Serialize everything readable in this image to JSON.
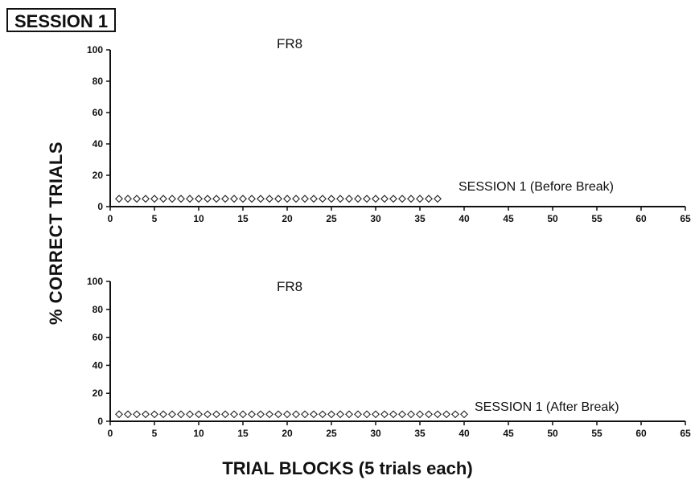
{
  "session_label": "SESSION 1",
  "chart_data": {
    "type": "scatter",
    "shared_ylabel": "% CORRECT TRIALS",
    "shared_xlabel": "TRIAL BLOCKS (5 trials each)",
    "panels": [
      {
        "title": "FR8",
        "xlim": [
          0,
          65
        ],
        "ylim": [
          0,
          100
        ],
        "xticks": [
          0,
          5,
          10,
          15,
          20,
          25,
          30,
          35,
          40,
          45,
          50,
          55,
          60,
          65
        ],
        "yticks": [
          0,
          20,
          40,
          60,
          80,
          100
        ],
        "series": [
          {
            "name": "SESSION 1 (Before Break)",
            "marker": "diamond-open",
            "x": [
              1,
              2,
              3,
              4,
              5,
              6,
              7,
              8,
              9,
              10,
              11,
              12,
              13,
              14,
              15,
              16,
              17,
              18,
              19,
              20,
              21,
              22,
              23,
              24,
              25,
              26,
              27,
              28,
              29,
              30,
              31,
              32,
              33,
              34,
              35,
              36,
              37
            ],
            "y": [
              5,
              5,
              5,
              5,
              5,
              5,
              5,
              5,
              5,
              5,
              5,
              5,
              5,
              5,
              5,
              5,
              5,
              5,
              5,
              5,
              5,
              5,
              5,
              5,
              5,
              5,
              5,
              5,
              5,
              5,
              5,
              5,
              5,
              5,
              5,
              5,
              5
            ]
          }
        ]
      },
      {
        "title": "FR8",
        "xlim": [
          0,
          65
        ],
        "ylim": [
          0,
          100
        ],
        "xticks": [
          0,
          5,
          10,
          15,
          20,
          25,
          30,
          35,
          40,
          45,
          50,
          55,
          60,
          65
        ],
        "yticks": [
          0,
          20,
          40,
          60,
          80,
          100
        ],
        "series": [
          {
            "name": "SESSION 1 (After Break)",
            "marker": "diamond-open",
            "x": [
              1,
              2,
              3,
              4,
              5,
              6,
              7,
              8,
              9,
              10,
              11,
              12,
              13,
              14,
              15,
              16,
              17,
              18,
              19,
              20,
              21,
              22,
              23,
              24,
              25,
              26,
              27,
              28,
              29,
              30,
              31,
              32,
              33,
              34,
              35,
              36,
              37,
              38,
              39,
              40
            ],
            "y": [
              5,
              5,
              5,
              5,
              5,
              5,
              5,
              5,
              5,
              5,
              5,
              5,
              5,
              5,
              5,
              5,
              5,
              5,
              5,
              5,
              5,
              5,
              5,
              5,
              5,
              5,
              5,
              5,
              5,
              5,
              5,
              5,
              5,
              5,
              5,
              5,
              5,
              5,
              5,
              5
            ]
          }
        ]
      }
    ]
  }
}
